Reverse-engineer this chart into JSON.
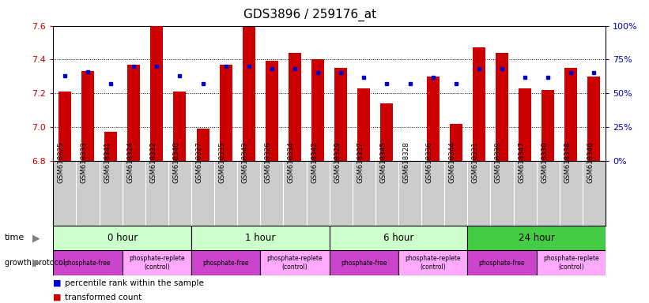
{
  "title": "GDS3896 / 259176_at",
  "samples": [
    "GSM618325",
    "GSM618333",
    "GSM618341",
    "GSM618324",
    "GSM618332",
    "GSM618340",
    "GSM618327",
    "GSM618335",
    "GSM618343",
    "GSM618326",
    "GSM618334",
    "GSM618342",
    "GSM618329",
    "GSM618337",
    "GSM618345",
    "GSM618328",
    "GSM618336",
    "GSM618344",
    "GSM618331",
    "GSM618339",
    "GSM618347",
    "GSM618330",
    "GSM618338",
    "GSM618346"
  ],
  "transformed_count": [
    7.21,
    7.33,
    6.97,
    7.37,
    7.6,
    7.21,
    6.99,
    7.37,
    7.595,
    7.39,
    7.44,
    7.4,
    7.35,
    7.23,
    7.14,
    6.75,
    7.3,
    7.02,
    7.47,
    7.44,
    7.23,
    7.22,
    7.35,
    7.3
  ],
  "percentile_rank": [
    63,
    66,
    57,
    70,
    70,
    63,
    57,
    70,
    70,
    68,
    68,
    65,
    65,
    62,
    57,
    57,
    62,
    57,
    68,
    68,
    62,
    62,
    65,
    65
  ],
  "ymin": 6.8,
  "ymax": 7.6,
  "yticks_left": [
    6.8,
    7.0,
    7.2,
    7.4,
    7.6
  ],
  "yticks_right_vals": [
    0,
    25,
    50,
    75,
    100
  ],
  "bar_color": "#cc0000",
  "dot_color": "#0000cc",
  "time_groups": [
    {
      "label": "0 hour",
      "start": 0,
      "end": 6,
      "color": "#ccffcc"
    },
    {
      "label": "1 hour",
      "start": 6,
      "end": 12,
      "color": "#ccffcc"
    },
    {
      "label": "6 hour",
      "start": 12,
      "end": 18,
      "color": "#ccffcc"
    },
    {
      "label": "24 hour",
      "start": 18,
      "end": 24,
      "color": "#44cc44"
    }
  ],
  "protocol_groups": [
    {
      "label": "phosphate-free",
      "start": 0,
      "end": 3,
      "color": "#cc44cc"
    },
    {
      "label": "phosphate-replete\n(control)",
      "start": 3,
      "end": 6,
      "color": "#ffaaff"
    },
    {
      "label": "phosphate-free",
      "start": 6,
      "end": 9,
      "color": "#cc44cc"
    },
    {
      "label": "phosphate-replete\n(control)",
      "start": 9,
      "end": 12,
      "color": "#ffaaff"
    },
    {
      "label": "phosphate-free",
      "start": 12,
      "end": 15,
      "color": "#cc44cc"
    },
    {
      "label": "phosphate-replete\n(control)",
      "start": 15,
      "end": 18,
      "color": "#ffaaff"
    },
    {
      "label": "phosphate-free",
      "start": 18,
      "end": 21,
      "color": "#cc44cc"
    },
    {
      "label": "phosphate-replete\n(control)",
      "start": 21,
      "end": 24,
      "color": "#ffaaff"
    }
  ],
  "xlabels_bg": "#cccccc",
  "dotted_lines": [
    7.0,
    7.2,
    7.4
  ]
}
